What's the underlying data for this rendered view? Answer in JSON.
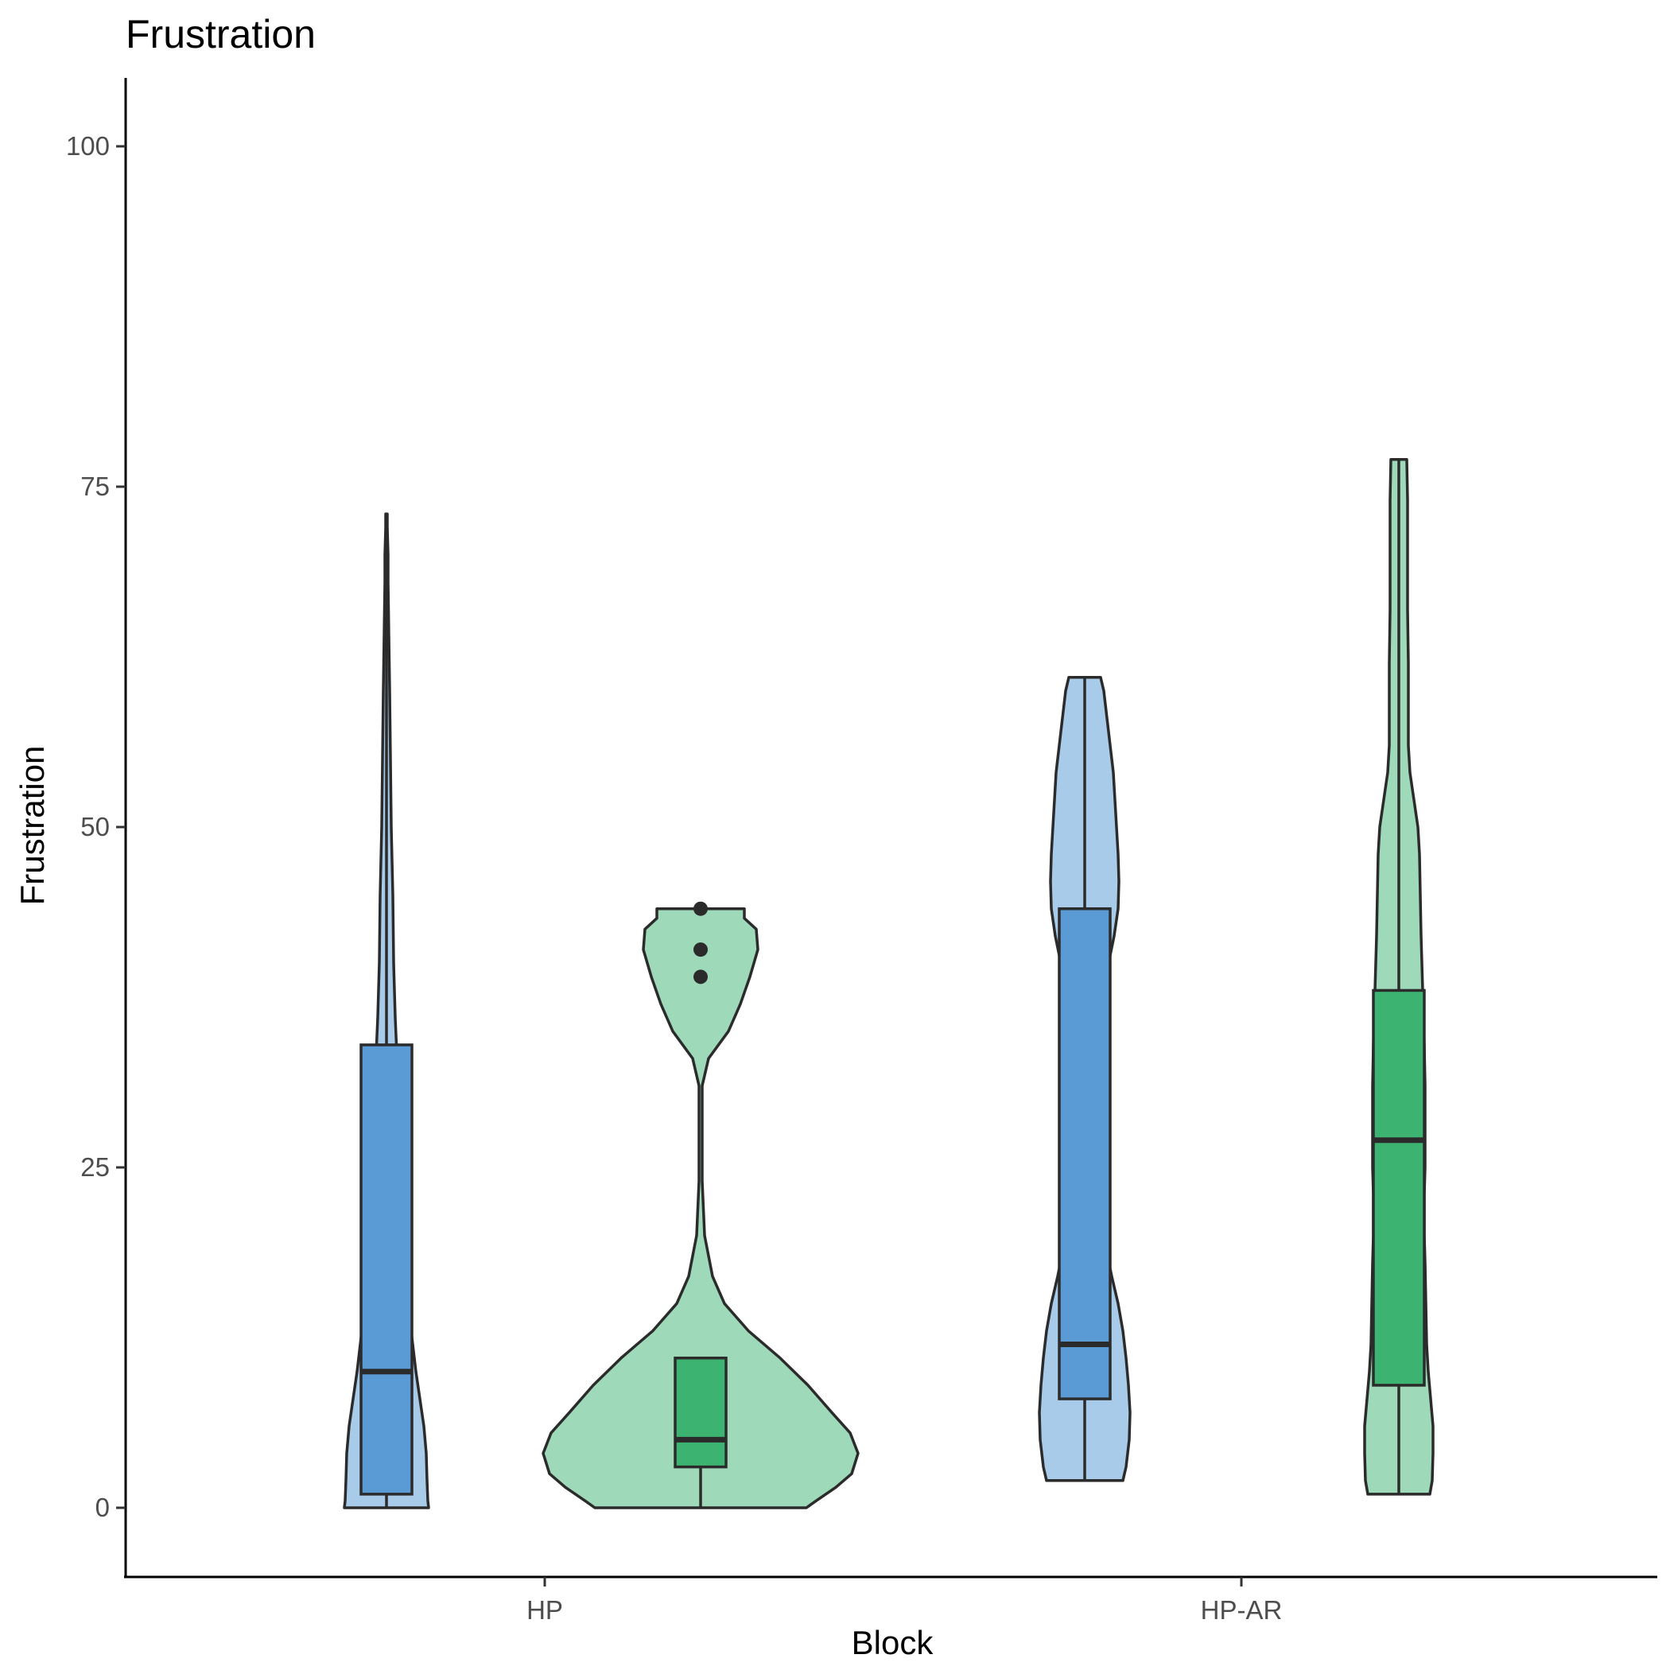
{
  "chart_data": {
    "type": "violin",
    "title": "Frustration",
    "xlabel": "Block",
    "ylabel": "Frustration",
    "categories": [
      "HP",
      "HP-AR"
    ],
    "ylim": [
      -5,
      105
    ],
    "yticks": [
      0,
      25,
      50,
      75,
      100
    ],
    "grid": false,
    "legend": "none",
    "groups": [
      {
        "category": "HP",
        "color_violin": "#a9cbea",
        "color_box": "#5a9bd5",
        "violin_min": 0,
        "violin_max": 73,
        "box": {
          "whisker_low": 0,
          "q1": 1,
          "median": 10,
          "q3": 34,
          "whisker_high": 73
        },
        "outliers": []
      },
      {
        "category": "HP",
        "color_violin": "#9ed9b9",
        "color_box": "#3cb371",
        "violin_min": 0,
        "violin_max": 44,
        "box": {
          "whisker_low": 0,
          "q1": 3,
          "median": 5,
          "q3": 11,
          "whisker_high": 11
        },
        "outliers": [
          39,
          41,
          44
        ]
      },
      {
        "category": "HP-AR",
        "color_violin": "#a9cbea",
        "color_box": "#5a9bd5",
        "violin_min": 2,
        "violin_max": 61,
        "box": {
          "whisker_low": 2,
          "q1": 8,
          "median": 12,
          "q3": 44,
          "whisker_high": 61
        },
        "outliers": []
      },
      {
        "category": "HP-AR",
        "color_violin": "#9ed9b9",
        "color_box": "#3cb371",
        "violin_min": 1,
        "violin_max": 77,
        "box": {
          "whisker_low": 1,
          "q1": 9,
          "median": 27,
          "q3": 38,
          "whisker_high": 77
        },
        "outliers": []
      }
    ]
  }
}
